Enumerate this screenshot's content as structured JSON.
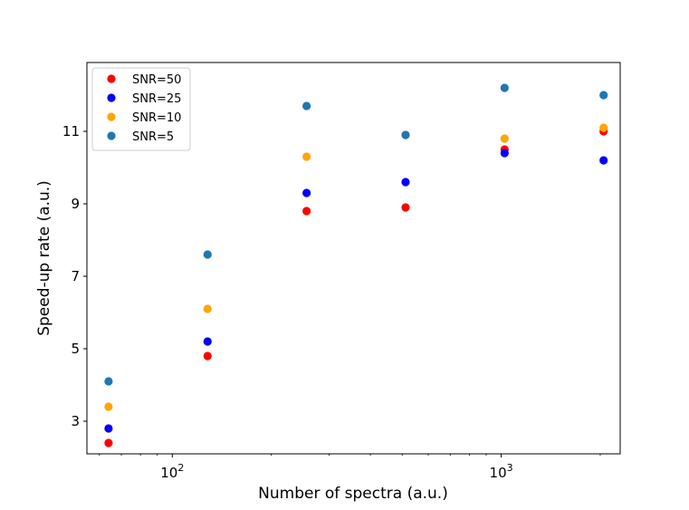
{
  "chart_data": {
    "type": "scatter",
    "title": "",
    "xlabel": "Number of spectra (a.u.)",
    "ylabel": "Speed-up rate (a.u.)",
    "xscale": "log",
    "xlim": [
      55,
      2300
    ],
    "ylim": [
      2.1,
      12.9
    ],
    "x_ticks": [
      {
        "value": 100,
        "base": "10",
        "exp": "2"
      },
      {
        "value": 1000,
        "base": "10",
        "exp": "3"
      }
    ],
    "y_ticks": [
      3,
      5,
      7,
      9,
      11
    ],
    "grid": false,
    "legend_position": "upper-left",
    "x": [
      64,
      128,
      256,
      512,
      1024,
      2048
    ],
    "series": [
      {
        "name": "SNR=50",
        "color": "#ff0000",
        "values": [
          2.4,
          4.8,
          8.8,
          8.9,
          10.5,
          11.0
        ]
      },
      {
        "name": "SNR=25",
        "color": "#0000ff",
        "values": [
          2.8,
          5.2,
          9.3,
          9.6,
          10.4,
          10.2
        ]
      },
      {
        "name": "SNR=10",
        "color": "#ffa500",
        "values": [
          3.4,
          6.1,
          10.3,
          10.9,
          10.8,
          11.1
        ]
      },
      {
        "name": "SNR=5",
        "color": "#1f77b4",
        "values": [
          4.1,
          7.6,
          11.7,
          10.9,
          12.2,
          12.0
        ]
      }
    ]
  }
}
